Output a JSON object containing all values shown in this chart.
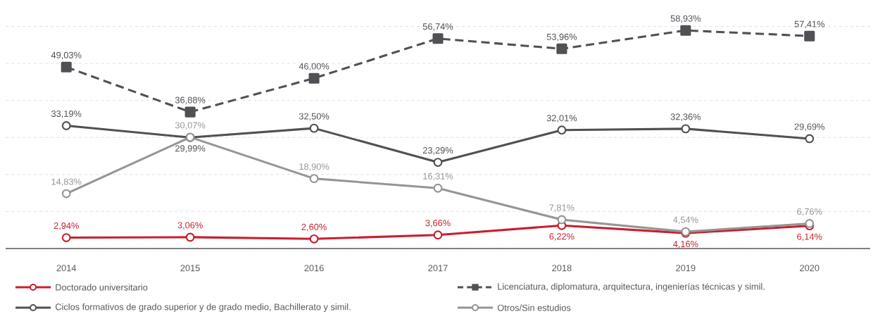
{
  "chart_data": {
    "type": "line",
    "categories": [
      "2014",
      "2015",
      "2016",
      "2017",
      "2018",
      "2019",
      "2020"
    ],
    "series": [
      {
        "name": "Doctorado universitario",
        "color": "#c8202f",
        "marker": "circle",
        "line_style": "solid",
        "values": [
          2.94,
          3.06,
          2.6,
          3.66,
          6.22,
          4.16,
          6.14
        ],
        "value_labels": [
          "2,94%",
          "3,06%",
          "2,60%",
          "3,66%",
          "6,22%",
          "4,16%",
          "6,14%"
        ]
      },
      {
        "name": "Licenciatura, diplomatura, arquitectura, ingenierías técnicas y simil.",
        "color": "#505055",
        "marker": "square",
        "line_style": "dashed",
        "values": [
          49.03,
          36.88,
          46.0,
          56.74,
          53.96,
          58.93,
          57.41
        ],
        "value_labels": [
          "49,03%",
          "36,88%",
          "46,00%",
          "56,74%",
          "53,96%",
          "58,93%",
          "57,41%"
        ]
      },
      {
        "name": "Ciclos formativos de grado superior y de grado medio, Bachillerato y simil.",
        "color": "#505055",
        "marker": "circle",
        "line_style": "solid",
        "values": [
          33.19,
          29.99,
          32.5,
          23.29,
          32.01,
          32.36,
          29.69
        ],
        "value_labels": [
          "33,19%",
          "29,99%",
          "32,50%",
          "23,29%",
          "32,01%",
          "32,36%",
          "29,69%"
        ]
      },
      {
        "name": "Otros/Sin estudios",
        "color": "#959595",
        "marker": "circle",
        "line_style": "solid",
        "values": [
          14.83,
          30.07,
          18.9,
          16.31,
          7.81,
          4.54,
          6.76
        ],
        "value_labels": [
          "14,83%",
          "30,07%",
          "18,90%",
          "16,31%",
          "7,81%",
          "4,54%",
          "6,76%"
        ]
      }
    ],
    "tick_labels": "x",
    "grid": "y",
    "legend": "bottom"
  }
}
